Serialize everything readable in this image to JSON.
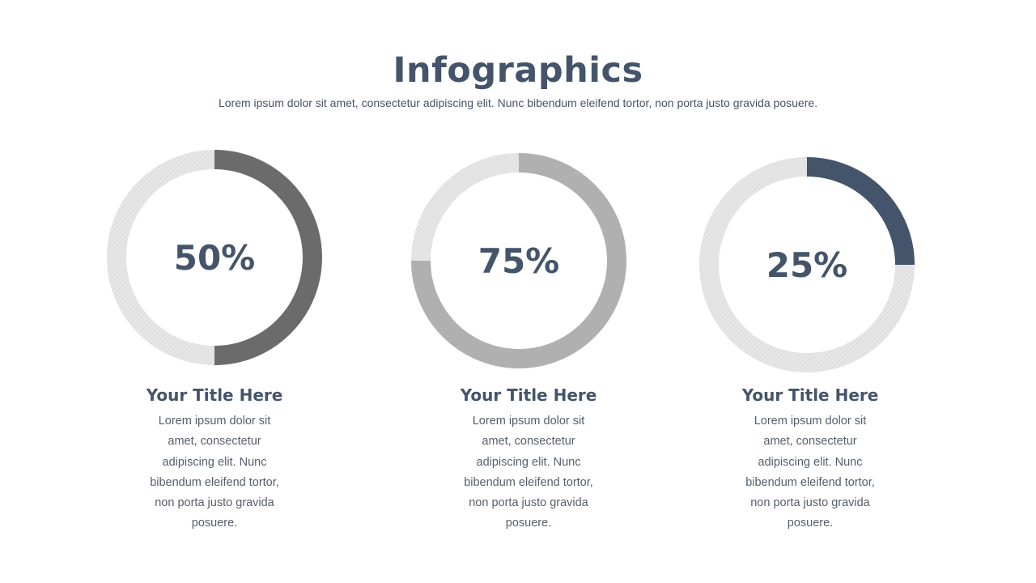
{
  "header": {
    "title": "Infographics",
    "subtitle": "Lorem ipsum dolor sit amet, consectetur adipiscing elit. Nunc bibendum eleifend tortor, non porta justo gravida posuere."
  },
  "chart_data": [
    {
      "type": "pie",
      "variant": "donut-progress",
      "value": 50,
      "label": "50%",
      "color": "#6b6b6b",
      "track_color": "#e3e3e3"
    },
    {
      "type": "pie",
      "variant": "donut-progress",
      "value": 75,
      "label": "75%",
      "color": "#b0b0b0",
      "track_color": "#e3e3e3"
    },
    {
      "type": "pie",
      "variant": "donut-progress",
      "value": 25,
      "label": "25%",
      "color": "#44546a",
      "track_color": "#e3e3e3"
    }
  ],
  "items": [
    {
      "title": "Your Title Here",
      "text": "Lorem ipsum dolor sit amet, consectetur adipiscing elit. Nunc bibendum eleifend tortor, non porta justo gravida posuere."
    },
    {
      "title": "Your Title Here",
      "text": "Lorem ipsum dolor sit amet, consectetur adipiscing elit. Nunc bibendum eleifend tortor, non porta justo gravida posuere."
    },
    {
      "title": "Your Title Here",
      "text": "Lorem ipsum dolor sit amet, consectetur adipiscing elit. Nunc bibendum eleifend tortor, non porta justo gravida posuere."
    }
  ]
}
